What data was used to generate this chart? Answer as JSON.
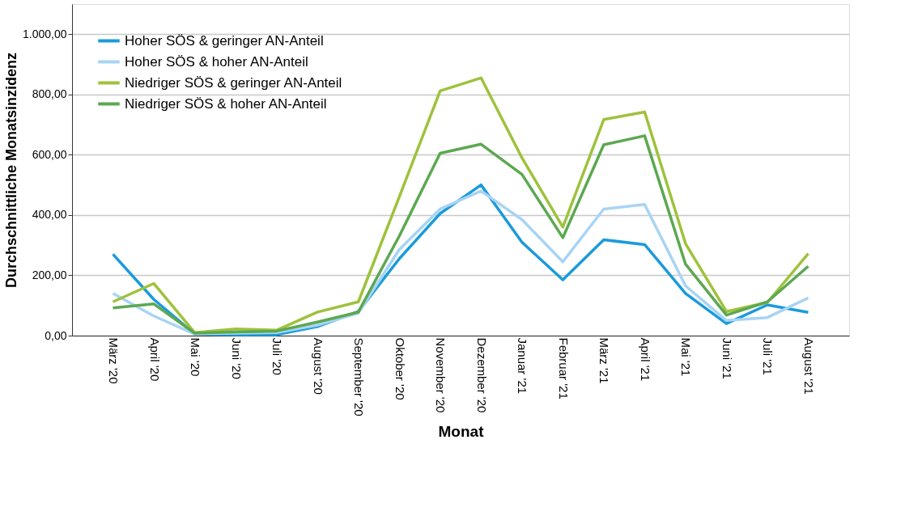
{
  "chart_data": {
    "type": "line",
    "xlabel": "Monat",
    "ylabel": "Durchschnittliche Monatsinzidenz",
    "categories": [
      "März '20",
      "April '20",
      "Mai '20",
      "Juni '20",
      "Juli '20",
      "August '20",
      "September '20",
      "Oktober '20",
      "November '20",
      "Dezember '20",
      "Januar '21",
      "Februar '21",
      "März '21",
      "April '21",
      "Mai '21",
      "Juni '21",
      "Juli '21",
      "August '21"
    ],
    "series": [
      {
        "name": "Hoher SÖS & geringer AN-Anteil",
        "color": "#1a9bdb",
        "values": [
          270,
          120,
          5,
          3,
          3,
          30,
          80,
          255,
          405,
          500,
          310,
          185,
          318,
          302,
          140,
          40,
          102,
          77
        ]
      },
      {
        "name": "Hoher SÖS & hoher AN-Anteil",
        "color": "#a8d4f4",
        "values": [
          140,
          65,
          5,
          8,
          10,
          35,
          75,
          285,
          420,
          480,
          385,
          245,
          420,
          435,
          165,
          50,
          60,
          125
        ]
      },
      {
        "name": "Niedriger SÖS & geringer AN-Anteil",
        "color": "#9ec23c",
        "values": [
          112,
          173,
          10,
          22,
          18,
          78,
          112,
          460,
          812,
          855,
          590,
          360,
          717,
          742,
          305,
          80,
          110,
          272
        ]
      },
      {
        "name": "Niedriger SÖS & hoher AN-Anteil",
        "color": "#5ca851",
        "values": [
          92,
          105,
          8,
          12,
          15,
          45,
          78,
          330,
          605,
          635,
          535,
          325,
          633,
          663,
          237,
          68,
          112,
          230
        ]
      }
    ],
    "ylim": [
      0,
      1100
    ],
    "yticks": [
      {
        "value": 0,
        "label": "0,00"
      },
      {
        "value": 200,
        "label": "200,00"
      },
      {
        "value": 400,
        "label": "400,00"
      },
      {
        "value": 600,
        "label": "600,00"
      },
      {
        "value": 800,
        "label": "800,00"
      },
      {
        "value": 1000,
        "label": "1.000,00"
      }
    ],
    "grid": "y",
    "legend": "top left",
    "marker": "none",
    "line_style": "solid"
  }
}
